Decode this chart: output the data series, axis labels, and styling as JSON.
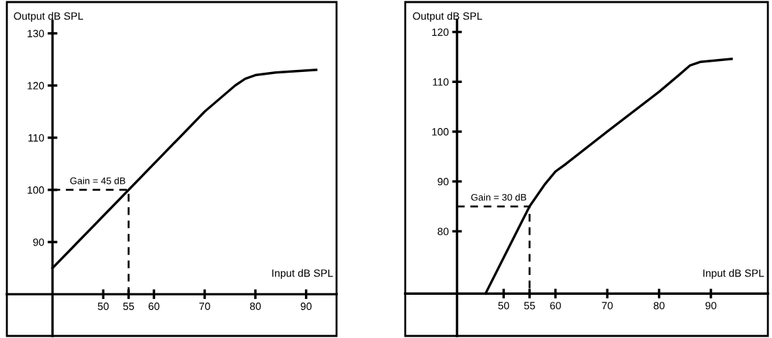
{
  "chart_data": [
    {
      "type": "line",
      "xlabel": "Input dB SPL",
      "ylabel": "Output dB SPL",
      "xlim": [
        31,
        96
      ],
      "ylim": [
        72,
        136
      ],
      "xticks": [
        50,
        55,
        60,
        70,
        80,
        90
      ],
      "yticks": [
        90,
        100,
        110,
        120,
        130
      ],
      "grid": false,
      "annotations": [
        {
          "text": "Gain = 45 dB",
          "x": 55,
          "y": 100
        }
      ],
      "series": [
        {
          "color": "#000000",
          "x": [
            40,
            55,
            70,
            76,
            78,
            80,
            84,
            92
          ],
          "values": [
            85,
            100,
            115,
            120,
            121.3,
            122,
            122.5,
            123
          ]
        },
        {
          "color": "#000000",
          "line_style": "dashed",
          "x": [
            40,
            55,
            55
          ],
          "values": [
            100,
            100,
            80
          ]
        }
      ]
    },
    {
      "type": "line",
      "xlabel": "Input dB SPL",
      "ylabel": "Output dB SPL",
      "xlim": [
        31,
        101
      ],
      "ylim": [
        59,
        126
      ],
      "xticks": [
        50,
        55,
        60,
        70,
        80,
        90
      ],
      "yticks": [
        80,
        90,
        100,
        110,
        120
      ],
      "grid": false,
      "annotations": [
        {
          "text": "Gain = 30 dB",
          "x": 55,
          "y": 85
        }
      ],
      "series": [
        {
          "color": "#000000",
          "x": [
            46.5,
            55,
            58,
            60,
            62,
            70,
            80,
            84,
            86,
            88,
            94
          ],
          "values": [
            67.5,
            85,
            89.5,
            92,
            93.5,
            100,
            108,
            111.5,
            113.3,
            114,
            114.6
          ]
        },
        {
          "color": "#000000",
          "line_style": "dashed",
          "x": [
            41,
            55,
            55
          ],
          "values": [
            85,
            85,
            67.5
          ]
        }
      ]
    }
  ]
}
